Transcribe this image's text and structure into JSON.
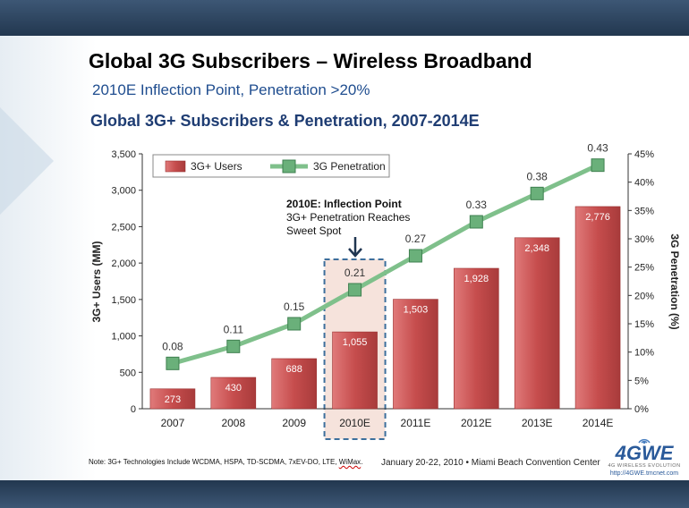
{
  "slide": {
    "title": "Global 3G Subscribers – Wireless Broadband",
    "subtitle": "2010E Inflection Point, Penetration >20%",
    "chart_heading": "Global 3G+ Subscribers & Penetration, 2007-2014E",
    "note_prefix": "Note: 3G+ Technologies Include WCDMA, HSPA, TD-SCDMA, 7xEV-DO, LTE, ",
    "note_wimax": "WiMax",
    "note_suffix": ".",
    "event": "January 20-22, 2010  •  Miami Beach Convention Center",
    "logo": {
      "text": "4GWE",
      "tagline": "4G WIRELESS EVOLUTION",
      "url": "http://4GWE.tmcnet.com"
    }
  },
  "chart_data": {
    "type": "bar",
    "title": "Global 3G+ Subscribers & Penetration, 2007-2014E",
    "categories": [
      "2007",
      "2008",
      "2009",
      "2010E",
      "2011E",
      "2012E",
      "2013E",
      "2014E"
    ],
    "series": [
      {
        "name": "3G+ Users",
        "type": "bar",
        "axis": "left",
        "color": "#c64d4d",
        "values": [
          273,
          430,
          688,
          1055,
          1503,
          1928,
          2348,
          2776
        ],
        "labels": [
          "273",
          "430",
          "688",
          "1,055",
          "1,503",
          "1,928",
          "2,348",
          "2,776"
        ]
      },
      {
        "name": "3G Penetration",
        "type": "line",
        "axis": "right",
        "color": "#7fc08b",
        "values": [
          0.08,
          0.11,
          0.15,
          0.21,
          0.27,
          0.33,
          0.38,
          0.43
        ],
        "labels": [
          "0.08",
          "0.11",
          "0.15",
          "0.21",
          "0.27",
          "0.33",
          "0.38",
          "0.43"
        ]
      }
    ],
    "ylabel": "3G+ Users (MM)",
    "ylim": [
      0,
      3500
    ],
    "yticks": [
      "0",
      "500",
      "1,000",
      "1,500",
      "2,000",
      "2,500",
      "3,000",
      "3,500"
    ],
    "y2label": "3G Penetration (%)",
    "y2lim": [
      0,
      0.45
    ],
    "y2ticks": [
      "0%",
      "5%",
      "10%",
      "15%",
      "20%",
      "25%",
      "30%",
      "35%",
      "40%",
      "45%"
    ],
    "grid": false,
    "legend": "top-left",
    "annotation": {
      "category": "2010E",
      "lines": [
        "2010E: Inflection Point",
        "3G+ Penetration Reaches",
        "Sweet Spot"
      ]
    }
  }
}
